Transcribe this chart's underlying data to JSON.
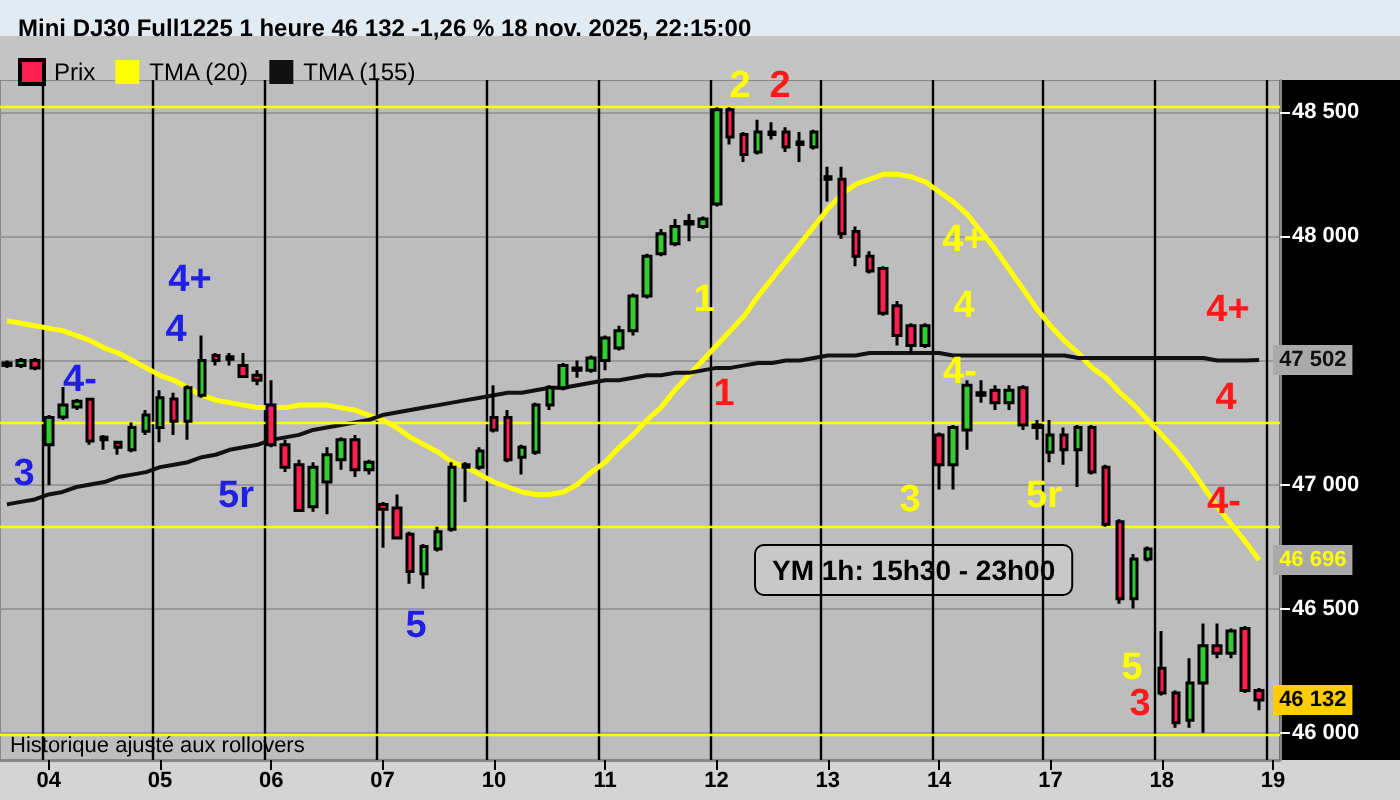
{
  "chart_data": {
    "type": "candlestick",
    "title": "Mini DJ30 Full1225 1 heure 46 132 -1,26 % 18 nov. 2025, 22:15:00",
    "categories": [
      null,
      null,
      null,
      "04",
      null,
      null,
      null,
      null,
      null,
      null,
      null,
      "05",
      null,
      null,
      null,
      null,
      null,
      null,
      null,
      "06",
      null,
      null,
      null,
      null,
      null,
      null,
      null,
      "07",
      null,
      null,
      null,
      null,
      null,
      null,
      null,
      "10",
      null,
      null,
      null,
      null,
      null,
      null,
      null,
      "11",
      null,
      null,
      null,
      null,
      null,
      null,
      null,
      "12",
      null,
      null,
      null,
      null,
      null,
      null,
      null,
      "13",
      null,
      null,
      null,
      null,
      null,
      null,
      null,
      "14",
      null,
      null,
      null,
      null,
      null,
      null,
      null,
      "17",
      null,
      null,
      null,
      null,
      null,
      null,
      null,
      "18",
      null,
      null,
      null,
      null,
      null,
      null,
      null,
      "19"
    ],
    "series": [
      {
        "name": "Prix",
        "colors": [
          "#ff1f4f",
          "#33cc33",
          "#ff1f4f",
          "#33cc33",
          "#33cc33",
          "#33cc33",
          "#ff1f4f",
          "#ff1f4f",
          "#ff1f4f",
          "#33cc33",
          "#33cc33",
          "#33cc33",
          "#ff1f4f",
          "#33cc33",
          "#33cc33",
          "#ff1f4f",
          "#33cc33",
          "#ff1f4f",
          "#ff1f4f",
          "#ff1f4f",
          "#ff1f4f",
          "#ff1f4f",
          "#33cc33",
          "#33cc33",
          "#33cc33",
          "#ff1f4f",
          "#33cc33",
          "#ff1f4f",
          "#ff1f4f",
          "#ff1f4f",
          "#33cc33",
          "#33cc33",
          "#33cc33",
          "#ff1f4f",
          "#33cc33",
          "#ff1f4f",
          "#ff1f4f",
          "#33cc33",
          "#33cc33",
          "#33cc33",
          "#33cc33",
          "#ff1f4f",
          "#33cc33",
          "#33cc33",
          "#33cc33",
          "#33cc33",
          "#33cc33",
          "#33cc33",
          "#33cc33",
          "#33cc33",
          "#33cc33",
          "#33cc33",
          "#ff1f4f",
          "#ff1f4f",
          "#33cc33",
          "#ff1f4f",
          "#ff1f4f",
          "#ff1f4f",
          "#33cc33",
          "#ff1f4f",
          "#ff1f4f",
          "#ff1f4f",
          "#ff1f4f",
          "#ff1f4f",
          "#ff1f4f",
          "#ff1f4f",
          "#33cc33",
          "#ff1f4f",
          "#33cc33",
          "#33cc33",
          "#ff1f4f",
          "#ff1f4f",
          "#33cc33",
          "#ff1f4f",
          "#ff1f4f",
          "#33cc33",
          "#ff1f4f",
          "#33cc33",
          "#ff1f4f",
          "#ff1f4f",
          "#ff1f4f",
          "#33cc33",
          "#33cc33",
          "#ff1f4f",
          "#ff1f4f",
          "#33cc33",
          "#33cc33",
          "#ff1f4f",
          "#33cc33",
          "#ff1f4f",
          "#ff1f4f",
          null
        ],
        "ohlc": [
          [
            47490,
            47500,
            47470,
            47480
          ],
          [
            47480,
            47510,
            47470,
            47500
          ],
          [
            47500,
            47510,
            47460,
            47470
          ],
          [
            47160,
            47280,
            46997,
            47270
          ],
          [
            47272,
            47393,
            47260,
            47320
          ],
          [
            47312,
            47345,
            47300,
            47336
          ],
          [
            47344,
            47350,
            47160,
            47175
          ],
          [
            47190,
            47200,
            47140,
            47180
          ],
          [
            47170,
            47175,
            47120,
            47150
          ],
          [
            47140,
            47250,
            47130,
            47230
          ],
          [
            47215,
            47300,
            47200,
            47280
          ],
          [
            47230,
            47380,
            47170,
            47350
          ],
          [
            47345,
            47370,
            47200,
            47255
          ],
          [
            47255,
            47400,
            47180,
            47390
          ],
          [
            47360,
            47600,
            47350,
            47500
          ],
          [
            47520,
            47530,
            47480,
            47500
          ],
          [
            47505,
            47530,
            47480,
            47515
          ],
          [
            47480,
            47530,
            47430,
            47435
          ],
          [
            47440,
            47460,
            47400,
            47420
          ],
          [
            47320,
            47420,
            47150,
            47160
          ],
          [
            47160,
            47180,
            47050,
            47070
          ],
          [
            47080,
            47100,
            46890,
            46895
          ],
          [
            46910,
            47090,
            46890,
            47070
          ],
          [
            47010,
            47150,
            46880,
            47120
          ],
          [
            47100,
            47190,
            47060,
            47180
          ],
          [
            47180,
            47200,
            47030,
            47060
          ],
          [
            47060,
            47100,
            47040,
            47090
          ],
          [
            46920,
            46930,
            46745,
            46900
          ],
          [
            46905,
            46960,
            46780,
            46785
          ],
          [
            46800,
            46810,
            46600,
            46650
          ],
          [
            46640,
            46760,
            46580,
            46750
          ],
          [
            46740,
            46830,
            46730,
            46810
          ],
          [
            46820,
            47090,
            46810,
            47070
          ],
          [
            47080,
            47090,
            46930,
            47070
          ],
          [
            47070,
            47150,
            47060,
            47135
          ],
          [
            47270,
            47400,
            47210,
            47220
          ],
          [
            47270,
            47300,
            47090,
            47100
          ],
          [
            47110,
            47160,
            47040,
            47150
          ],
          [
            47130,
            47330,
            47120,
            47320
          ],
          [
            47320,
            47400,
            47300,
            47390
          ],
          [
            47390,
            47490,
            47380,
            47480
          ],
          [
            47470,
            47500,
            47430,
            47460
          ],
          [
            47460,
            47520,
            47450,
            47510
          ],
          [
            47500,
            47600,
            47460,
            47590
          ],
          [
            47550,
            47640,
            47540,
            47620
          ],
          [
            47620,
            47770,
            47600,
            47760
          ],
          [
            47760,
            47930,
            47750,
            47920
          ],
          [
            47930,
            48030,
            47920,
            48010
          ],
          [
            47970,
            48070,
            47960,
            48040
          ],
          [
            48050,
            48090,
            47980,
            48060
          ],
          [
            48040,
            48080,
            48030,
            48070
          ],
          [
            48130,
            48520,
            48120,
            48510
          ],
          [
            48510,
            48520,
            48370,
            48400
          ],
          [
            48410,
            48420,
            48300,
            48330
          ],
          [
            48340,
            48470,
            48330,
            48420
          ],
          [
            48420,
            48460,
            48390,
            48410
          ],
          [
            48420,
            48440,
            48340,
            48360
          ],
          [
            48380,
            48420,
            48300,
            48370
          ],
          [
            48360,
            48430,
            48350,
            48420
          ],
          [
            48240,
            48280,
            48140,
            48230
          ],
          [
            48230,
            48280,
            47990,
            48010
          ],
          [
            48020,
            48040,
            47880,
            47920
          ],
          [
            47920,
            47940,
            47850,
            47860
          ],
          [
            47870,
            47880,
            47680,
            47690
          ],
          [
            47720,
            47740,
            47560,
            47600
          ],
          [
            47640,
            47650,
            47530,
            47560
          ],
          [
            47560,
            47650,
            47550,
            47640
          ],
          [
            47200,
            47210,
            46980,
            47080
          ],
          [
            47080,
            47240,
            46980,
            47230
          ],
          [
            47220,
            47420,
            47140,
            47400
          ],
          [
            47370,
            47420,
            47330,
            47360
          ],
          [
            47380,
            47400,
            47300,
            47330
          ],
          [
            47330,
            47400,
            47300,
            47380
          ],
          [
            47390,
            47400,
            47220,
            47240
          ],
          [
            47240,
            47260,
            47180,
            47230
          ],
          [
            47130,
            47260,
            47090,
            47200
          ],
          [
            47200,
            47230,
            47080,
            47140
          ],
          [
            47140,
            47240,
            46990,
            47230
          ],
          [
            47230,
            47240,
            47040,
            47050
          ],
          [
            47070,
            47080,
            46830,
            46840
          ],
          [
            46850,
            46860,
            46520,
            46540
          ],
          [
            46540,
            46720,
            46500,
            46700
          ],
          [
            46700,
            46750,
            46690,
            46740
          ],
          [
            46260,
            46410,
            46150,
            46160
          ],
          [
            46160,
            46170,
            46020,
            46040
          ],
          [
            46050,
            46300,
            46020,
            46200
          ],
          [
            46200,
            46440,
            46000,
            46350
          ],
          [
            46350,
            46440,
            46300,
            46320
          ],
          [
            46320,
            46420,
            46300,
            46410
          ],
          [
            46420,
            46430,
            46160,
            46170
          ],
          [
            46170,
            46180,
            46090,
            46132
          ],
          null
        ],
        "value_labels": [
          null,
          null,
          null,
          null,
          null,
          null,
          null,
          null,
          null,
          null,
          null,
          null,
          null,
          null,
          null,
          null,
          null,
          null,
          null,
          null,
          null,
          null,
          null,
          null,
          null,
          null,
          null,
          null,
          null,
          null,
          null,
          null,
          null,
          null,
          null,
          null,
          null,
          null,
          null,
          null,
          null,
          null,
          null,
          null,
          null,
          null,
          null,
          null,
          null,
          null,
          null,
          null,
          null,
          null,
          null,
          null,
          null,
          null,
          null,
          null,
          null,
          null,
          null,
          null,
          null,
          null,
          null,
          null,
          null,
          null,
          null,
          null,
          null,
          null,
          null,
          null,
          null,
          null,
          null,
          null,
          null,
          null,
          null,
          null,
          null,
          null,
          null,
          null,
          null,
          null,
          "46 132",
          null
        ]
      },
      {
        "name": "TMA (20)",
        "type": "line",
        "color": "#ffff00",
        "values": [
          47660,
          47650,
          47640,
          47630,
          47620,
          47600,
          47580,
          47550,
          47530,
          47500,
          47470,
          47440,
          47420,
          47390,
          47360,
          47340,
          47330,
          47320,
          47310,
          47310,
          47310,
          47320,
          47320,
          47320,
          47310,
          47300,
          47280,
          47260,
          47230,
          47190,
          47160,
          47130,
          47090,
          47070,
          47040,
          47010,
          46990,
          46970,
          46960,
          46960,
          46970,
          47000,
          47050,
          47090,
          47150,
          47200,
          47260,
          47310,
          47380,
          47440,
          47500,
          47560,
          47620,
          47680,
          47760,
          47830,
          47900,
          47970,
          48040,
          48110,
          48170,
          48210,
          48230,
          48250,
          48250,
          48240,
          48220,
          48180,
          48140,
          48090,
          48020,
          47950,
          47870,
          47790,
          47710,
          47640,
          47580,
          47530,
          47470,
          47430,
          47370,
          47320,
          47260,
          47200,
          47140,
          47070,
          46990,
          46910,
          46840,
          46770,
          46696,
          null
        ],
        "value_labels": [
          null,
          null,
          null,
          null,
          null,
          null,
          null,
          null,
          null,
          null,
          null,
          null,
          null,
          null,
          null,
          null,
          null,
          null,
          null,
          null,
          null,
          null,
          null,
          null,
          null,
          null,
          null,
          null,
          null,
          null,
          null,
          null,
          null,
          null,
          null,
          null,
          null,
          null,
          null,
          null,
          null,
          null,
          null,
          null,
          null,
          null,
          null,
          null,
          null,
          null,
          null,
          null,
          null,
          null,
          null,
          null,
          null,
          null,
          null,
          null,
          null,
          null,
          null,
          null,
          null,
          null,
          null,
          null,
          null,
          null,
          null,
          null,
          null,
          null,
          null,
          null,
          null,
          null,
          null,
          null,
          null,
          null,
          null,
          null,
          null,
          null,
          null,
          null,
          null,
          null,
          "46 696",
          null
        ]
      },
      {
        "name": "TMA (155)",
        "type": "line",
        "color": "#111111",
        "values": [
          46920,
          46930,
          46940,
          46960,
          46970,
          46990,
          47000,
          47010,
          47030,
          47040,
          47050,
          47070,
          47080,
          47090,
          47110,
          47120,
          47140,
          47150,
          47160,
          47180,
          47190,
          47200,
          47220,
          47230,
          47240,
          47250,
          47260,
          47280,
          47290,
          47300,
          47310,
          47320,
          47330,
          47340,
          47350,
          47360,
          47370,
          47370,
          47380,
          47390,
          47390,
          47400,
          47410,
          47420,
          47420,
          47430,
          47440,
          47440,
          47450,
          47450,
          47460,
          47470,
          47470,
          47480,
          47490,
          47490,
          47500,
          47500,
          47510,
          47520,
          47520,
          47520,
          47530,
          47530,
          47530,
          47530,
          47530,
          47530,
          47520,
          47520,
          47520,
          47520,
          47520,
          47520,
          47520,
          47520,
          47520,
          47510,
          47510,
          47510,
          47510,
          47510,
          47510,
          47510,
          47510,
          47510,
          47510,
          47500,
          47500,
          47500,
          47502,
          null
        ],
        "value_labels": [
          null,
          null,
          null,
          null,
          null,
          null,
          null,
          null,
          null,
          null,
          null,
          null,
          null,
          null,
          null,
          null,
          null,
          null,
          null,
          null,
          null,
          null,
          null,
          null,
          null,
          null,
          null,
          null,
          null,
          null,
          null,
          null,
          null,
          null,
          null,
          null,
          null,
          null,
          null,
          null,
          null,
          null,
          null,
          null,
          null,
          null,
          null,
          null,
          null,
          null,
          null,
          null,
          null,
          null,
          null,
          null,
          null,
          null,
          null,
          null,
          null,
          null,
          null,
          null,
          null,
          null,
          null,
          null,
          null,
          null,
          null,
          null,
          null,
          null,
          null,
          null,
          null,
          null,
          null,
          null,
          null,
          null,
          null,
          null,
          null,
          null,
          null,
          null,
          null,
          null,
          "47 502",
          null
        ]
      }
    ],
    "ylim": [
      45890,
      48630
    ],
    "yticks": [
      {
        "value": 46000,
        "label": "46 000"
      },
      {
        "value": 46500,
        "label": "46 500"
      },
      {
        "value": 47000,
        "label": "47 000"
      },
      {
        "value": 47500,
        "label": null
      },
      {
        "value": 48000,
        "label": "48 000"
      },
      {
        "value": 48500,
        "label": "48 500"
      }
    ],
    "ref_lines": [
      {
        "axis": "y",
        "value": 48522,
        "label": null,
        "color": "#ffff00"
      },
      {
        "axis": "y",
        "value": 47250,
        "label": null,
        "color": "#ffff00"
      },
      {
        "axis": "y",
        "value": 46833,
        "label": null,
        "color": "#ffff00"
      },
      {
        "axis": "y",
        "value": 45990,
        "label": null,
        "color": "#ffff00"
      }
    ],
    "annotations": [
      "YM 1h: 15h30 - 23h00",
      "Historique ajusté aux rollovers",
      "3",
      "4-",
      "4+",
      "4",
      "5r",
      "5",
      "2",
      "2",
      "1",
      "1",
      "4+",
      "4",
      "4-",
      "3",
      "5r",
      "5",
      "3",
      "4+",
      "4",
      "4-"
    ],
    "grid": true,
    "legend": "top left",
    "marker": "none"
  }
}
